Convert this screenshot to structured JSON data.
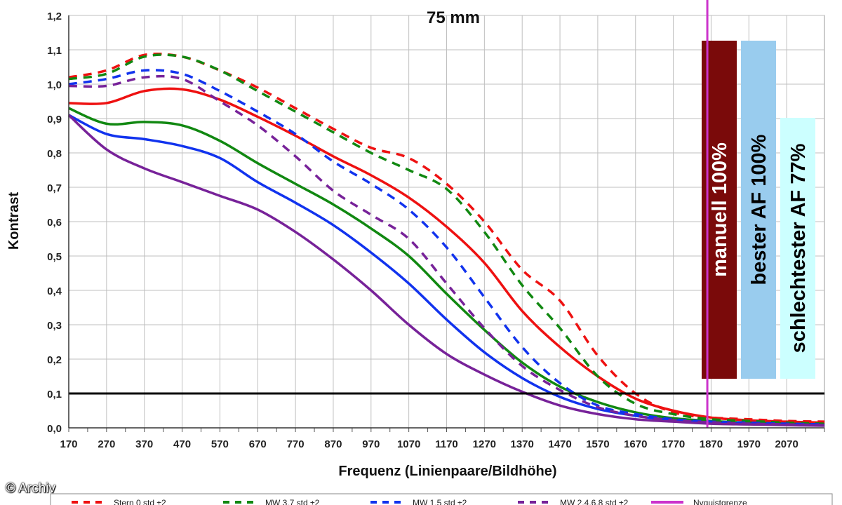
{
  "chart_data": {
    "type": "line",
    "title": "75 mm",
    "xlabel": "Frequenz (Linienpaare/Bildhöhe)",
    "ylabel": "Kontrast",
    "xlim": [
      170,
      2170
    ],
    "ylim": [
      0,
      1.2
    ],
    "x_ticks": [
      "170",
      "270",
      "370",
      "470",
      "570",
      "670",
      "770",
      "870",
      "970",
      "1070",
      "1170",
      "1270",
      "1370",
      "1470",
      "1570",
      "1670",
      "1770",
      "1870",
      "1970",
      "2070"
    ],
    "y_ticks": [
      "0,0",
      "0,1",
      "0,2",
      "0,3",
      "0,4",
      "0,5",
      "0,6",
      "0,7",
      "0,8",
      "0,9",
      "1,0",
      "1,1",
      "1,2"
    ],
    "grid": true,
    "legend_position": "bottom",
    "reference_line": {
      "y": 0.1,
      "color": "#000000"
    },
    "nyquist": {
      "x": 1860,
      "color": "#cc33cc",
      "label": "Nyquistgrenze"
    },
    "series": [
      {
        "name": "Stern 0 std ±2",
        "color": "#ee1111",
        "dash": false,
        "x": [
          170,
          270,
          370,
          470,
          570,
          670,
          770,
          870,
          970,
          1070,
          1170,
          1270,
          1370,
          1470,
          1570,
          1670,
          1770,
          1870,
          1970,
          2070,
          2170
        ],
        "y": [
          0.945,
          0.945,
          0.98,
          0.985,
          0.955,
          0.905,
          0.85,
          0.79,
          0.735,
          0.67,
          0.585,
          0.48,
          0.34,
          0.235,
          0.15,
          0.085,
          0.05,
          0.03,
          0.022,
          0.018,
          0.015
        ]
      },
      {
        "name": "Stern 0 std ±2 (Streuung)",
        "color": "#ee1111",
        "dash": true,
        "x": [
          170,
          270,
          370,
          470,
          570,
          670,
          770,
          870,
          970,
          1070,
          1170,
          1270,
          1370,
          1470,
          1570,
          1670,
          1770,
          1870,
          1970,
          2070,
          2170
        ],
        "y": [
          1.02,
          1.04,
          1.085,
          1.08,
          1.04,
          0.99,
          0.93,
          0.87,
          0.815,
          0.785,
          0.71,
          0.6,
          0.46,
          0.37,
          0.21,
          0.1,
          0.045,
          0.03,
          0.025,
          0.02,
          0.018
        ]
      },
      {
        "name": "MW 3,7 std ±2",
        "color": "#118811",
        "dash": false,
        "x": [
          170,
          270,
          370,
          470,
          570,
          670,
          770,
          870,
          970,
          1070,
          1170,
          1270,
          1370,
          1470,
          1570,
          1670,
          1770,
          1870,
          1970,
          2070,
          2170
        ],
        "y": [
          0.93,
          0.885,
          0.89,
          0.88,
          0.835,
          0.77,
          0.71,
          0.65,
          0.58,
          0.5,
          0.39,
          0.285,
          0.19,
          0.12,
          0.075,
          0.045,
          0.028,
          0.02,
          0.015,
          0.012,
          0.01
        ]
      },
      {
        "name": "MW 3,7 std ±2 (Streuung)",
        "color": "#118811",
        "dash": true,
        "x": [
          170,
          270,
          370,
          470,
          570,
          670,
          770,
          870,
          970,
          1070,
          1170,
          1270,
          1370,
          1470,
          1570,
          1670,
          1770,
          1870,
          1970,
          2070,
          2170
        ],
        "y": [
          1.015,
          1.03,
          1.08,
          1.08,
          1.04,
          0.98,
          0.92,
          0.86,
          0.8,
          0.75,
          0.695,
          0.57,
          0.415,
          0.29,
          0.15,
          0.07,
          0.04,
          0.025,
          0.02,
          0.015,
          0.012
        ]
      },
      {
        "name": "MW 1,5 std ±2",
        "color": "#1133ee",
        "dash": false,
        "x": [
          170,
          270,
          370,
          470,
          570,
          670,
          770,
          870,
          970,
          1070,
          1170,
          1270,
          1370,
          1470,
          1570,
          1670,
          1770,
          1870,
          1970,
          2070,
          2170
        ],
        "y": [
          0.91,
          0.855,
          0.84,
          0.82,
          0.785,
          0.715,
          0.655,
          0.59,
          0.51,
          0.42,
          0.315,
          0.22,
          0.145,
          0.09,
          0.055,
          0.035,
          0.022,
          0.015,
          0.012,
          0.01,
          0.008
        ]
      },
      {
        "name": "MW 1,5 std ±2 (Streuung)",
        "color": "#1133ee",
        "dash": true,
        "x": [
          170,
          270,
          370,
          470,
          570,
          670,
          770,
          870,
          970,
          1070,
          1170,
          1270,
          1370,
          1470,
          1570,
          1670,
          1770,
          1870,
          1970,
          2070,
          2170
        ],
        "y": [
          1.0,
          1.015,
          1.04,
          1.03,
          0.98,
          0.92,
          0.855,
          0.775,
          0.71,
          0.635,
          0.525,
          0.38,
          0.235,
          0.13,
          0.065,
          0.04,
          0.025,
          0.018,
          0.015,
          0.012,
          0.01
        ]
      },
      {
        "name": "MW 2,4,6,8 std ±2",
        "color": "#772299",
        "dash": false,
        "x": [
          170,
          270,
          370,
          470,
          570,
          670,
          770,
          870,
          970,
          1070,
          1170,
          1270,
          1370,
          1470,
          1570,
          1670,
          1770,
          1870,
          1970,
          2070,
          2170
        ],
        "y": [
          0.91,
          0.81,
          0.755,
          0.715,
          0.675,
          0.635,
          0.57,
          0.49,
          0.4,
          0.3,
          0.215,
          0.155,
          0.105,
          0.065,
          0.04,
          0.025,
          0.018,
          0.012,
          0.01,
          0.008,
          0.006
        ]
      },
      {
        "name": "MW 2,4,6,8 std ±2 (Streuung)",
        "color": "#772299",
        "dash": true,
        "x": [
          170,
          270,
          370,
          470,
          570,
          670,
          770,
          870,
          970,
          1070,
          1170,
          1270,
          1370,
          1470,
          1570,
          1670,
          1770,
          1870,
          1970,
          2070,
          2170
        ],
        "y": [
          0.995,
          0.995,
          1.02,
          1.015,
          0.95,
          0.88,
          0.79,
          0.69,
          0.62,
          0.55,
          0.42,
          0.29,
          0.18,
          0.11,
          0.06,
          0.035,
          0.022,
          0.016,
          0.012,
          0.01,
          0.008
        ]
      }
    ],
    "bars": [
      {
        "label": "manuell 100%",
        "color": "#7a0a0a",
        "text_color": "#ffffff"
      },
      {
        "label": "bester AF 100%",
        "color": "#99ccee",
        "text_color": "#000000"
      },
      {
        "label": "schlechtester AF 77%",
        "color": "#ccffff",
        "text_color": "#000000"
      }
    ],
    "legend": [
      {
        "label": "Stern 0 std ±2",
        "color": "#ee1111",
        "dash": true
      },
      {
        "label": "MW 3,7 std ±2",
        "color": "#118811",
        "dash": true
      },
      {
        "label": "MW 1,5 std ±2",
        "color": "#1133ee",
        "dash": true
      },
      {
        "label": "MW 2,4,6,8 std ±2",
        "color": "#772299",
        "dash": true
      },
      {
        "label": "Nyquistgrenze",
        "color": "#cc33cc",
        "dash": false
      }
    ]
  },
  "watermark": "© Archiv"
}
